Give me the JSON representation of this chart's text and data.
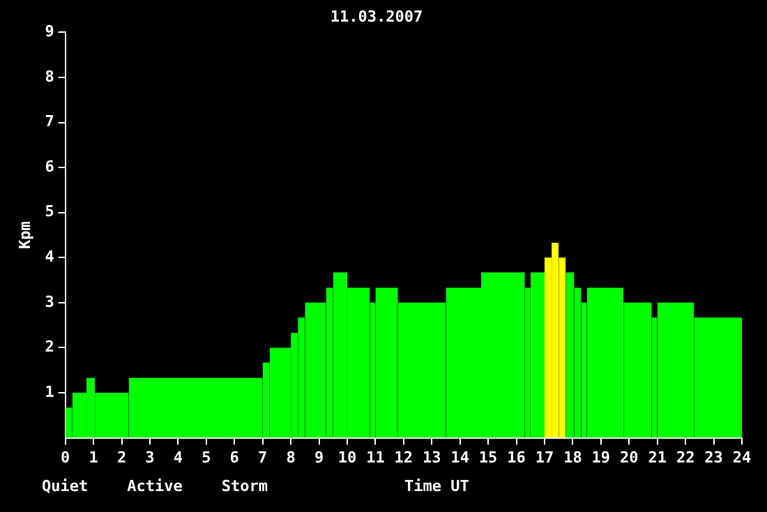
{
  "chart_data": {
    "type": "histogram",
    "title": "11.03.2007",
    "xlabel": "Time UT",
    "ylabel": "Kpm",
    "bins": [
      0,
      0.25,
      0.75,
      1.05,
      2.25,
      7,
      7.25,
      8,
      8.25,
      8.5,
      9.25,
      9.5,
      10,
      10.8,
      11,
      11.8,
      13.5,
      14.75,
      16.3,
      16.5,
      17,
      17.25,
      17.5,
      17.75,
      18.05,
      18.3,
      18.5,
      19.8,
      20.8,
      21,
      22.3,
      24
    ],
    "values": [
      0.67,
      1,
      1.33,
      1,
      1.33,
      1.67,
      2,
      2.33,
      2.67,
      3,
      3.33,
      3.67,
      3.33,
      3,
      3.33,
      3,
      3.33,
      3.67,
      3.33,
      3.67,
      4,
      4.33,
      4,
      3.67,
      3.33,
      3,
      3.33,
      3,
      2.67,
      3,
      2.67
    ],
    "colors": [
      "#00ff00",
      "#00ff00",
      "#00ff00",
      "#00ff00",
      "#00ff00",
      "#00ff00",
      "#00ff00",
      "#00ff00",
      "#00ff00",
      "#00ff00",
      "#00ff00",
      "#00ff00",
      "#00ff00",
      "#00ff00",
      "#00ff00",
      "#00ff00",
      "#00ff00",
      "#00ff00",
      "#00ff00",
      "#00ff00",
      "#ffff00",
      "#ffff00",
      "#ffff00",
      "#00ff00",
      "#00ff00",
      "#00ff00",
      "#00ff00",
      "#00ff00",
      "#00ff00",
      "#00ff00",
      "#00ff00"
    ],
    "annotations": [
      "Quiet",
      "Active",
      "Storm"
    ],
    "xlim": [
      0,
      24
    ],
    "xticks": [
      0,
      1,
      2,
      3,
      4,
      5,
      6,
      7,
      8,
      9,
      10,
      11,
      12,
      13,
      14,
      15,
      16,
      17,
      18,
      19,
      20,
      21,
      22,
      23,
      24
    ],
    "ylim": [
      0,
      9
    ],
    "yticks": [
      1,
      2,
      3,
      4,
      5,
      6,
      7,
      8,
      9
    ],
    "grid": false
  }
}
